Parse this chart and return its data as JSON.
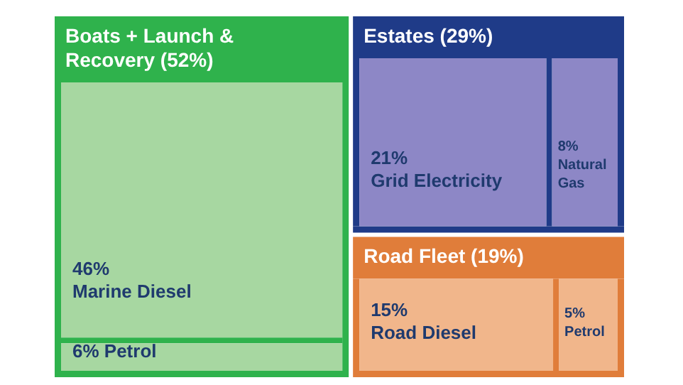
{
  "chart_data": {
    "type": "other",
    "categories": [
      "Boats + Launch & Recovery",
      "Marine Diesel",
      "Petrol",
      "Estates",
      "Grid Electricity",
      "Natural Gas",
      "Road Fleet",
      "Road Diesel",
      "Petrol"
    ],
    "values": [
      52,
      46,
      6,
      29,
      21,
      8,
      19,
      15,
      5
    ],
    "value_labels": [
      "(52%)",
      "46%",
      "6%",
      "(29%)",
      "21%",
      "8%",
      "(19%)",
      "15%",
      "5%"
    ],
    "colors": [
      "#2fb24c",
      "#a7d7a1",
      "#a7d7a1",
      "#1f3b88",
      "#8d87c6",
      "#8d87c6",
      "#e07d3a",
      "#f1b68b",
      "#f1b68b"
    ]
  }
}
